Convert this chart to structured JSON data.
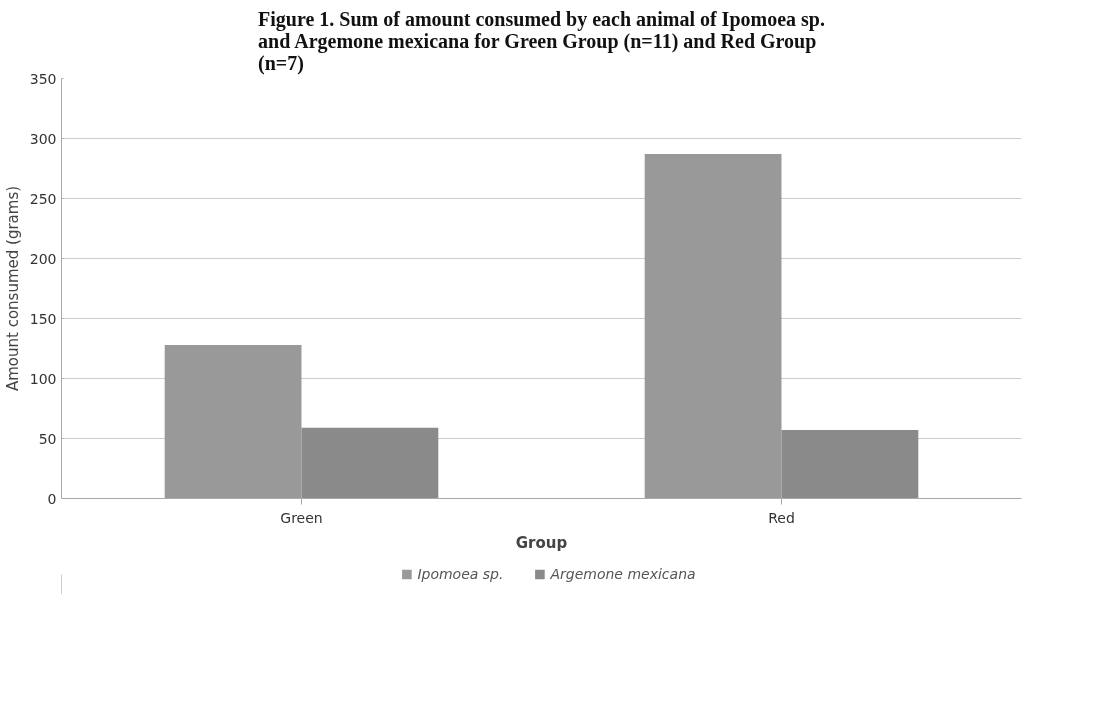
{
  "chart_data": {
    "type": "bar",
    "title": "Figure 1. Sum of amount consumed by each animal of Ipomoea sp. and Argemone mexicana for Green Group (n=11) and Red Group (n=7)",
    "xlabel": "Group",
    "ylabel": "Amount consumed (grams)",
    "categories": [
      "Green",
      "Red"
    ],
    "series": [
      {
        "name": "Ipomoea sp.",
        "color": "#999999",
        "values": [
          128,
          287
        ]
      },
      {
        "name": "Argemone mexicana",
        "color": "#8a8a8a",
        "values": [
          59,
          57
        ]
      }
    ],
    "ylim": [
      0,
      350
    ],
    "yticks": [
      0,
      50,
      100,
      150,
      200,
      250,
      300,
      350
    ],
    "grid": "y",
    "legend": "bottom"
  }
}
